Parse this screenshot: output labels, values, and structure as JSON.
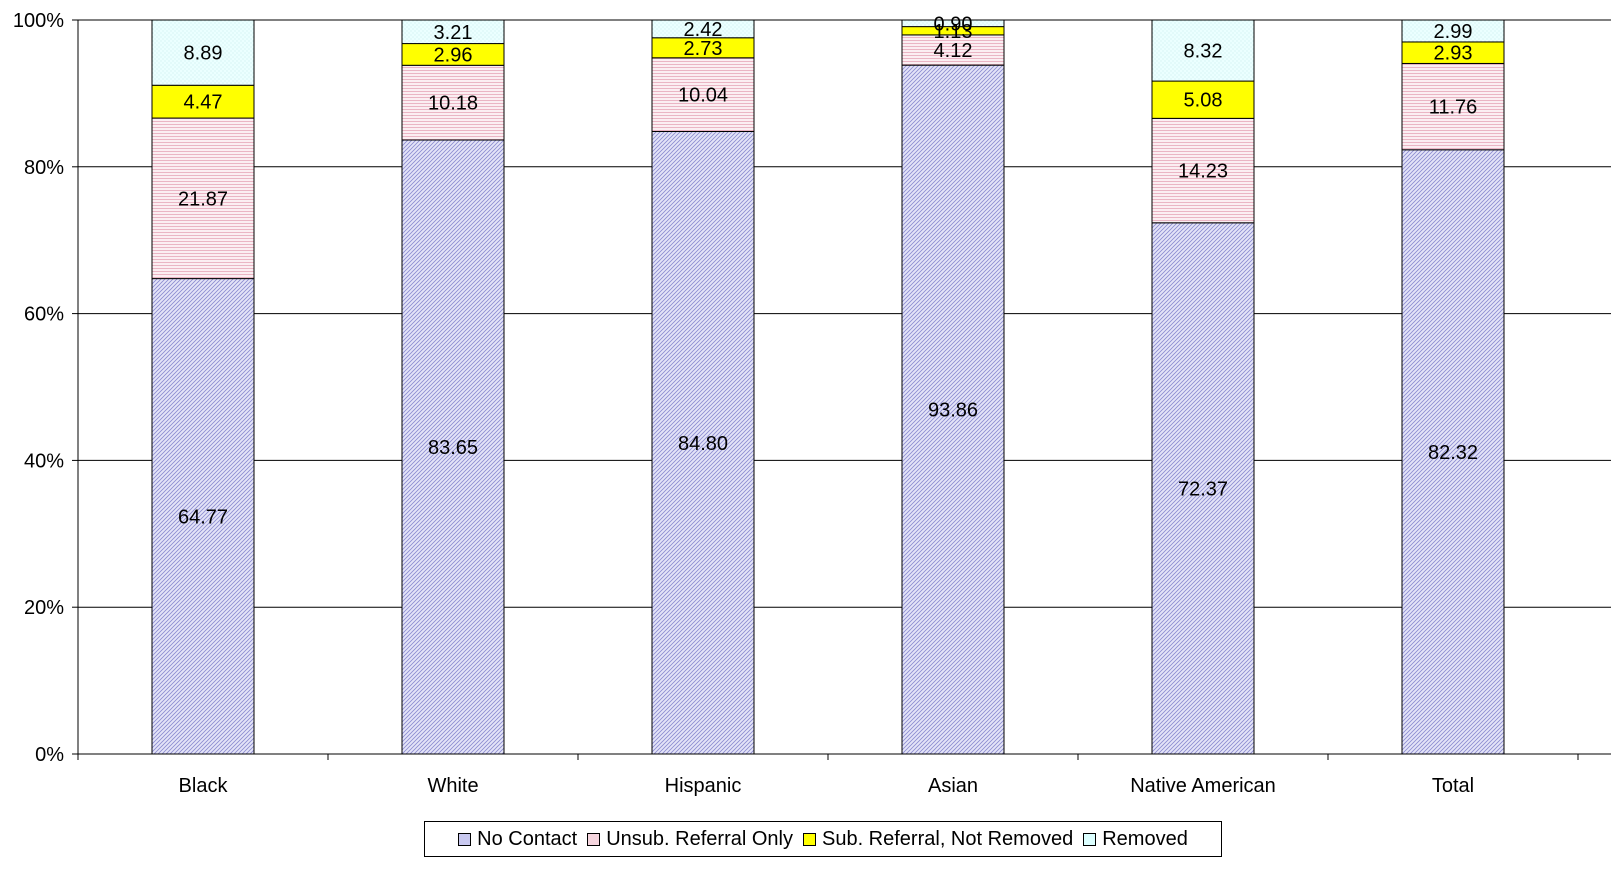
{
  "chart_data": {
    "type": "bar",
    "stacked": true,
    "percent": true,
    "title": "",
    "xlabel": "",
    "ylabel": "",
    "ylim": [
      0,
      100
    ],
    "yticks": [
      "0%",
      "20%",
      "40%",
      "60%",
      "80%",
      "100%"
    ],
    "grid": true,
    "legend_position": "bottom",
    "categories": [
      "Black",
      "White",
      "Hispanic",
      "Asian",
      "Native American",
      "Total"
    ],
    "series": [
      {
        "name": "No Contact",
        "color": "#c9c9f0",
        "values": [
          64.77,
          83.65,
          84.8,
          93.86,
          72.37,
          82.32
        ],
        "labels": [
          "64.77",
          "83.65",
          "84.80",
          "93.86",
          "72.37",
          "82.32"
        ]
      },
      {
        "name": "Unsub. Referral Only",
        "color": "#f5d5de",
        "values": [
          21.87,
          10.18,
          10.04,
          4.12,
          14.23,
          11.76
        ],
        "labels": [
          "21.87",
          "10.18",
          "10.04",
          "4.12",
          "14.23",
          "11.76"
        ]
      },
      {
        "name": "Sub. Referral, Not Removed",
        "color": "#ffff00",
        "values": [
          4.47,
          2.96,
          2.73,
          1.13,
          5.08,
          2.93
        ],
        "labels": [
          "4.47",
          "2.96",
          "2.73",
          "1.13",
          "5.08",
          "2.93"
        ]
      },
      {
        "name": "Removed",
        "color": "#dcffff",
        "values": [
          8.89,
          3.21,
          2.42,
          0.9,
          8.32,
          2.99
        ],
        "labels": [
          "8.89",
          "3.21",
          "2.42",
          "0.90",
          "8.32",
          "2.99"
        ]
      }
    ]
  }
}
